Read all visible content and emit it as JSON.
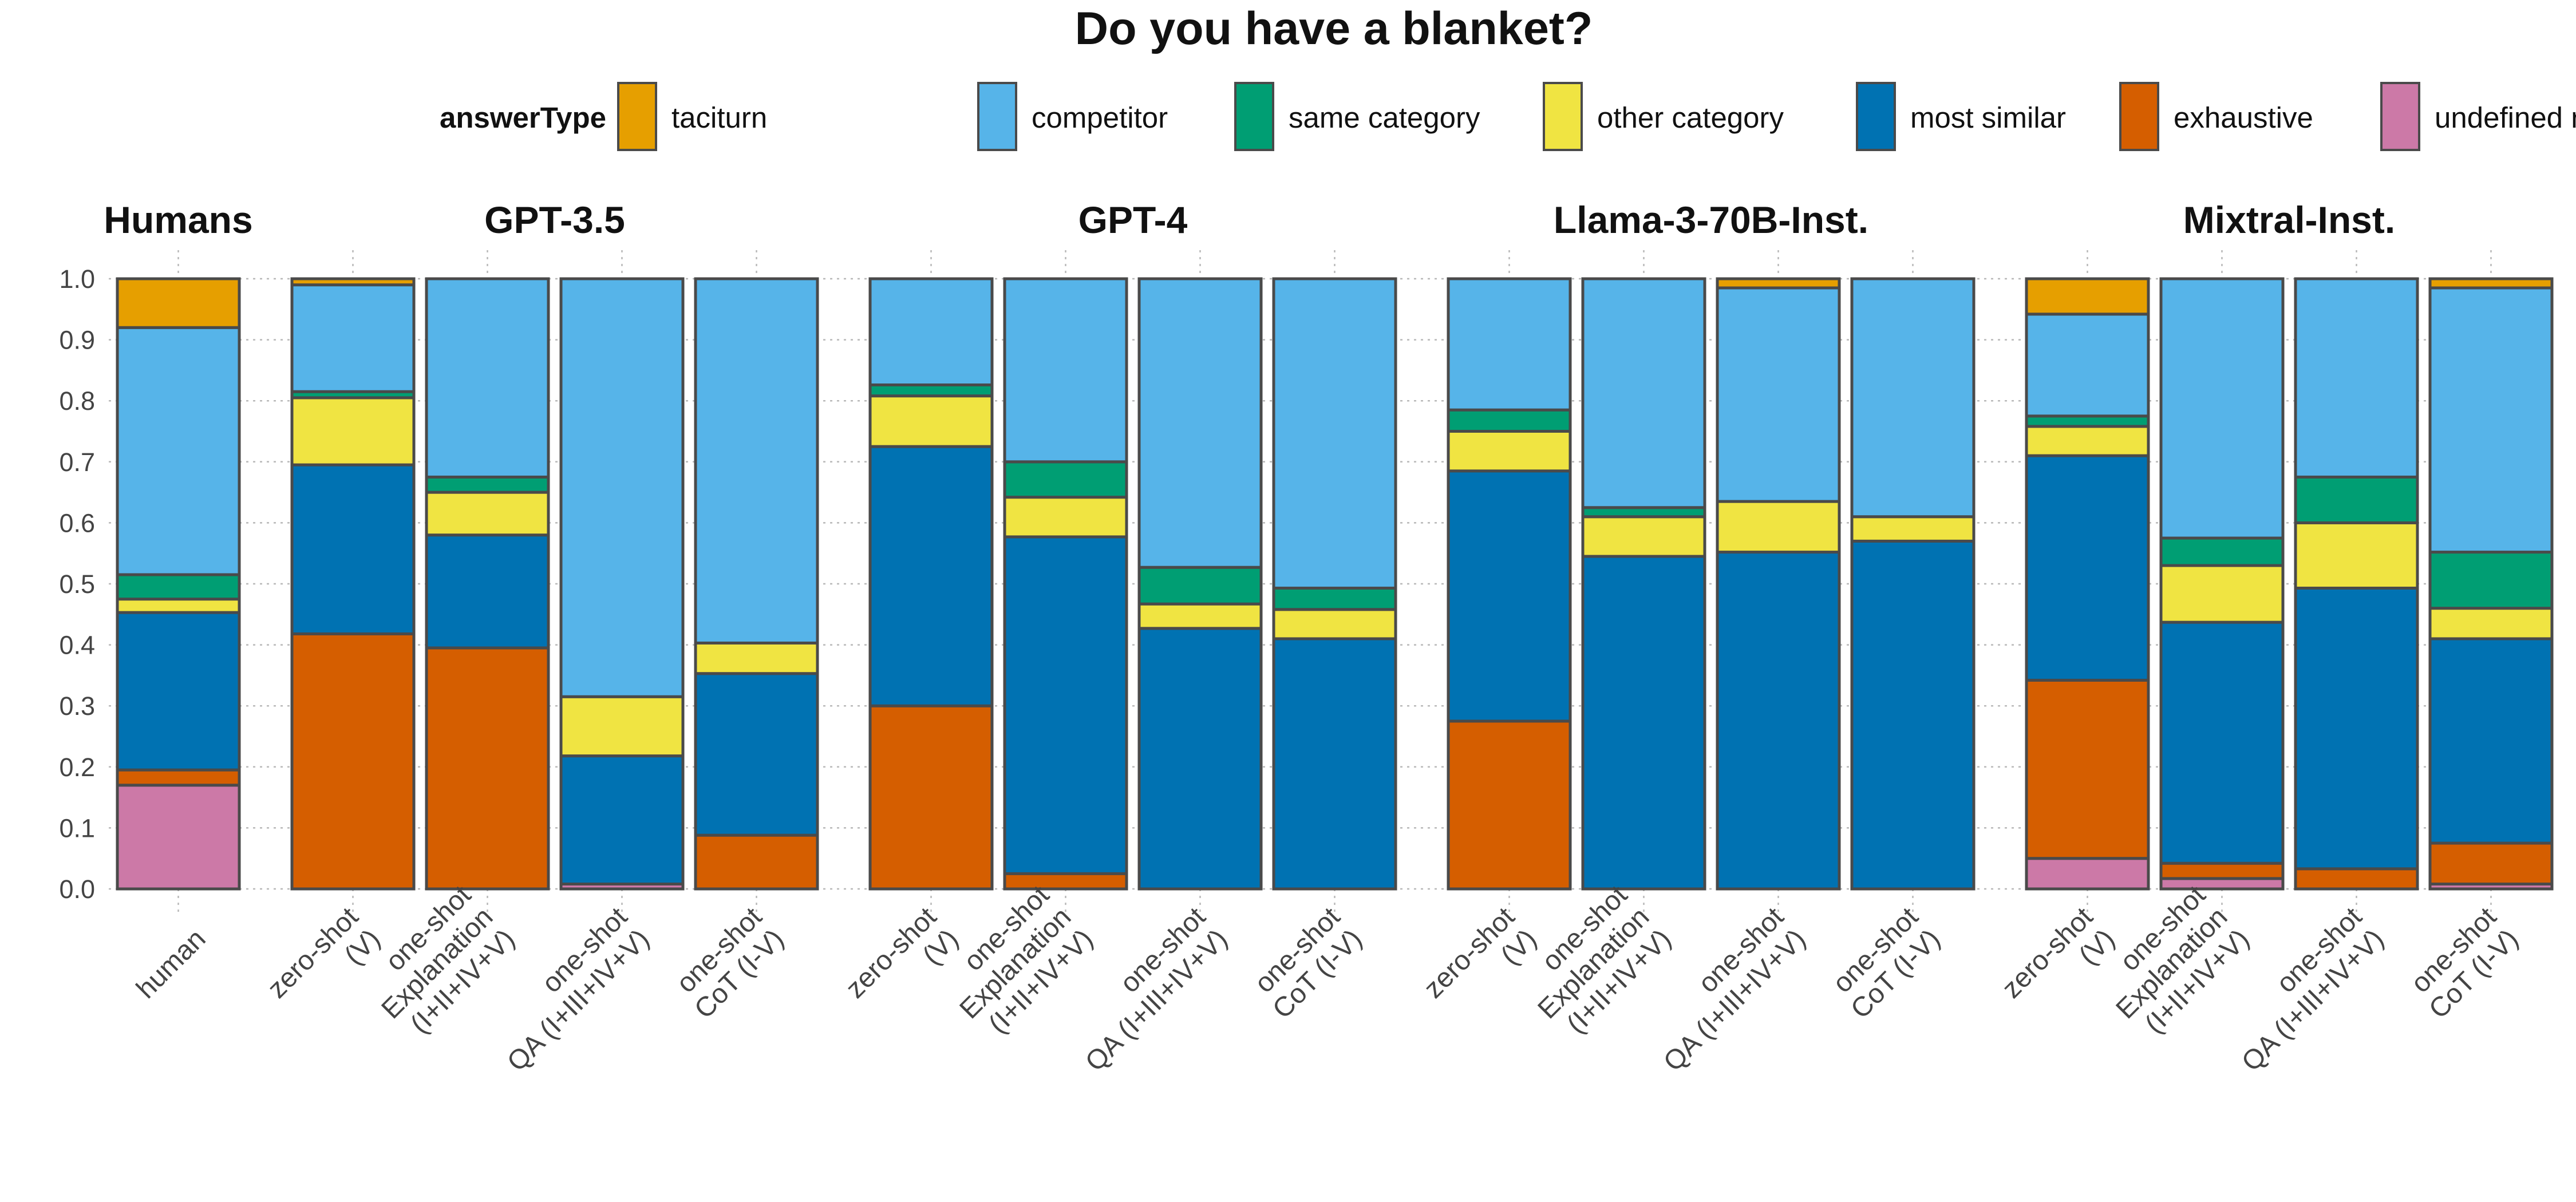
{
  "chart_data": {
    "type": "bar",
    "stacked": true,
    "title": "Do you have a blanket?",
    "legend": {
      "title": "answerType",
      "position": "top",
      "entries": [
        {
          "name": "taciturn",
          "color": "#E69F00"
        },
        {
          "name": "competitor",
          "color": "#56B4E9"
        },
        {
          "name": "same category",
          "color": "#009E73"
        },
        {
          "name": "other category",
          "color": "#F0E442"
        },
        {
          "name": "most similar",
          "color": "#0072B2"
        },
        {
          "name": "exhaustive",
          "color": "#D55E00"
        },
        {
          "name": "undefined responses",
          "color": "#CC79A7"
        }
      ]
    },
    "stack_order_bottom_to_top": [
      "undefined responses",
      "exhaustive",
      "most similar",
      "other category",
      "same category",
      "competitor",
      "taciturn"
    ],
    "ylim": [
      0,
      1
    ],
    "yticks": [
      "0.0",
      "0.1",
      "0.2",
      "0.3",
      "0.4",
      "0.5",
      "0.6",
      "0.7",
      "0.8",
      "0.9",
      "1.0"
    ],
    "grid": true,
    "facets": [
      {
        "title": "Humans",
        "bars": [
          {
            "label": [
              "human"
            ],
            "values": {
              "undefined responses": 0.17,
              "exhaustive": 0.025,
              "most similar": 0.258,
              "other category": 0.022,
              "same category": 0.04,
              "competitor": 0.405,
              "taciturn": 0.08
            }
          }
        ]
      },
      {
        "title": "GPT-3.5",
        "bars": [
          {
            "label": [
              "zero-shot",
              "(V)"
            ],
            "values": {
              "undefined responses": 0.0,
              "exhaustive": 0.418,
              "most similar": 0.277,
              "other category": 0.11,
              "same category": 0.01,
              "competitor": 0.175,
              "taciturn": 0.01
            }
          },
          {
            "label": [
              "one-shot",
              "Explanation",
              "(I+II+IV+V)"
            ],
            "values": {
              "undefined responses": 0.0,
              "exhaustive": 0.395,
              "most similar": 0.185,
              "other category": 0.07,
              "same category": 0.025,
              "competitor": 0.325,
              "taciturn": 0.0
            }
          },
          {
            "label": [
              "one-shot",
              "QA (I+III+IV+V)"
            ],
            "values": {
              "undefined responses": 0.008,
              "exhaustive": 0.0,
              "most similar": 0.21,
              "other category": 0.097,
              "same category": 0.0,
              "competitor": 0.685,
              "taciturn": 0.0
            }
          },
          {
            "label": [
              "one-shot",
              "CoT (I-V)"
            ],
            "values": {
              "undefined responses": 0.0,
              "exhaustive": 0.088,
              "most similar": 0.265,
              "other category": 0.05,
              "same category": 0.0,
              "competitor": 0.597,
              "taciturn": 0.0
            }
          }
        ]
      },
      {
        "title": "GPT-4",
        "bars": [
          {
            "label": [
              "zero-shot",
              "(V)"
            ],
            "values": {
              "undefined responses": 0.0,
              "exhaustive": 0.3,
              "most similar": 0.425,
              "other category": 0.083,
              "same category": 0.018,
              "competitor": 0.174,
              "taciturn": 0.0
            }
          },
          {
            "label": [
              "one-shot",
              "Explanation",
              "(I+II+IV+V)"
            ],
            "values": {
              "undefined responses": 0.0,
              "exhaustive": 0.025,
              "most similar": 0.552,
              "other category": 0.065,
              "same category": 0.058,
              "competitor": 0.3,
              "taciturn": 0.0
            }
          },
          {
            "label": [
              "one-shot",
              "QA (I+III+IV+V)"
            ],
            "values": {
              "undefined responses": 0.0,
              "exhaustive": 0.0,
              "most similar": 0.427,
              "other category": 0.04,
              "same category": 0.06,
              "competitor": 0.473,
              "taciturn": 0.0
            }
          },
          {
            "label": [
              "one-shot",
              "CoT (I-V)"
            ],
            "values": {
              "undefined responses": 0.0,
              "exhaustive": 0.0,
              "most similar": 0.41,
              "other category": 0.048,
              "same category": 0.035,
              "competitor": 0.507,
              "taciturn": 0.0
            }
          }
        ]
      },
      {
        "title": "Llama-3-70B-Inst.",
        "bars": [
          {
            "label": [
              "zero-shot",
              "(V)"
            ],
            "values": {
              "undefined responses": 0.0,
              "exhaustive": 0.275,
              "most similar": 0.41,
              "other category": 0.065,
              "same category": 0.035,
              "competitor": 0.215,
              "taciturn": 0.0
            }
          },
          {
            "label": [
              "one-shot",
              "Explanation",
              "(I+II+IV+V)"
            ],
            "values": {
              "undefined responses": 0.0,
              "exhaustive": 0.0,
              "most similar": 0.545,
              "other category": 0.065,
              "same category": 0.015,
              "competitor": 0.375,
              "taciturn": 0.0
            }
          },
          {
            "label": [
              "one-shot",
              "QA (I+III+IV+V)"
            ],
            "values": {
              "undefined responses": 0.0,
              "exhaustive": 0.0,
              "most similar": 0.552,
              "other category": 0.083,
              "same category": 0.0,
              "competitor": 0.35,
              "taciturn": 0.015
            }
          },
          {
            "label": [
              "one-shot",
              "CoT (I-V)"
            ],
            "values": {
              "undefined responses": 0.0,
              "exhaustive": 0.0,
              "most similar": 0.57,
              "other category": 0.04,
              "same category": 0.0,
              "competitor": 0.39,
              "taciturn": 0.0
            }
          }
        ]
      },
      {
        "title": "Mixtral-Inst.",
        "bars": [
          {
            "label": [
              "zero-shot",
              "(V)"
            ],
            "values": {
              "undefined responses": 0.05,
              "exhaustive": 0.292,
              "most similar": 0.368,
              "other category": 0.048,
              "same category": 0.017,
              "competitor": 0.167,
              "taciturn": 0.058
            }
          },
          {
            "label": [
              "one-shot",
              "Explanation",
              "(I+II+IV+V)"
            ],
            "values": {
              "undefined responses": 0.017,
              "exhaustive": 0.025,
              "most similar": 0.395,
              "other category": 0.093,
              "same category": 0.045,
              "competitor": 0.425,
              "taciturn": 0.0
            }
          },
          {
            "label": [
              "one-shot",
              "QA (I+III+IV+V)"
            ],
            "values": {
              "undefined responses": 0.0,
              "exhaustive": 0.033,
              "most similar": 0.46,
              "other category": 0.107,
              "same category": 0.075,
              "competitor": 0.325,
              "taciturn": 0.0
            }
          },
          {
            "label": [
              "one-shot",
              "CoT (I-V)"
            ],
            "values": {
              "undefined responses": 0.008,
              "exhaustive": 0.067,
              "most similar": 0.335,
              "other category": 0.05,
              "same category": 0.092,
              "competitor": 0.433,
              "taciturn": 0.015
            }
          }
        ]
      }
    ]
  }
}
